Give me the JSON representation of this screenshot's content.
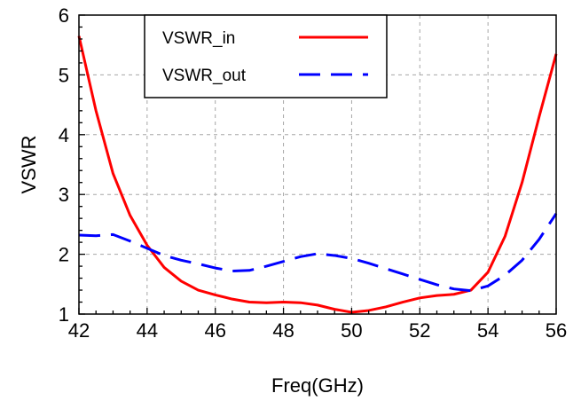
{
  "chart_data": {
    "type": "line",
    "title": "",
    "xlabel": "Freq(GHz)",
    "ylabel": "VSWR",
    "xlim": [
      42,
      56
    ],
    "ylim": [
      1,
      6
    ],
    "grid": true,
    "legend_position": "top-center",
    "x_ticks": [
      "42",
      "44",
      "46",
      "48",
      "50",
      "52",
      "54",
      "56"
    ],
    "y_ticks": [
      "1",
      "2",
      "3",
      "4",
      "5",
      "6"
    ],
    "series": [
      {
        "name": "VSWR_in",
        "color": "#ff0000",
        "dash": "solid",
        "x": [
          42,
          42.5,
          43,
          43.5,
          44,
          44.5,
          45,
          45.5,
          46,
          46.5,
          47,
          47.5,
          48,
          48.5,
          49,
          49.5,
          50,
          50.5,
          51,
          51.5,
          52,
          52.5,
          53,
          53.5,
          54,
          54.5,
          55,
          55.5,
          56
        ],
        "values": [
          5.65,
          4.4,
          3.35,
          2.65,
          2.15,
          1.78,
          1.55,
          1.4,
          1.32,
          1.25,
          1.2,
          1.19,
          1.2,
          1.19,
          1.15,
          1.08,
          1.03,
          1.06,
          1.12,
          1.2,
          1.27,
          1.31,
          1.33,
          1.4,
          1.7,
          2.3,
          3.2,
          4.3,
          5.35
        ]
      },
      {
        "name": "VSWR_out",
        "color": "#0000ff",
        "dash": "dashed",
        "x": [
          42,
          42.5,
          43,
          43.5,
          44,
          44.5,
          45,
          45.5,
          46,
          46.5,
          47,
          47.5,
          48,
          48.5,
          49,
          49.5,
          50,
          50.5,
          51,
          51.5,
          52,
          52.5,
          53,
          53.5,
          54,
          54.5,
          55,
          55.5,
          56
        ],
        "values": [
          2.32,
          2.31,
          2.33,
          2.22,
          2.1,
          1.98,
          1.9,
          1.84,
          1.77,
          1.72,
          1.73,
          1.8,
          1.88,
          1.96,
          2.01,
          1.98,
          1.93,
          1.85,
          1.76,
          1.67,
          1.58,
          1.49,
          1.42,
          1.39,
          1.47,
          1.65,
          1.9,
          2.25,
          2.68
        ]
      }
    ]
  }
}
